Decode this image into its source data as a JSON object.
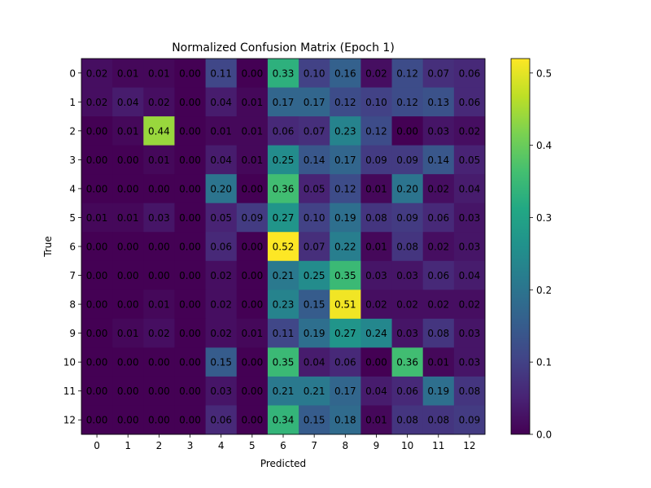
{
  "chart_data": {
    "type": "heatmap",
    "title": "Normalized Confusion Matrix (Epoch 1)",
    "xlabel": "Predicted",
    "ylabel": "True",
    "x_categories": [
      "0",
      "1",
      "2",
      "3",
      "4",
      "5",
      "6",
      "7",
      "8",
      "9",
      "10",
      "11",
      "12"
    ],
    "y_categories": [
      "0",
      "1",
      "2",
      "3",
      "4",
      "5",
      "6",
      "7",
      "8",
      "9",
      "10",
      "11",
      "12"
    ],
    "values": [
      [
        0.02,
        0.01,
        0.01,
        0.0,
        0.11,
        0.0,
        0.33,
        0.1,
        0.16,
        0.02,
        0.12,
        0.07,
        0.06
      ],
      [
        0.02,
        0.04,
        0.02,
        0.0,
        0.04,
        0.01,
        0.17,
        0.17,
        0.12,
        0.1,
        0.12,
        0.13,
        0.06
      ],
      [
        0.0,
        0.01,
        0.44,
        0.0,
        0.01,
        0.01,
        0.06,
        0.07,
        0.23,
        0.12,
        0.0,
        0.03,
        0.02
      ],
      [
        0.0,
        0.0,
        0.01,
        0.0,
        0.04,
        0.01,
        0.25,
        0.14,
        0.17,
        0.09,
        0.09,
        0.14,
        0.05
      ],
      [
        0.0,
        0.0,
        0.0,
        0.0,
        0.2,
        0.0,
        0.36,
        0.05,
        0.12,
        0.01,
        0.2,
        0.02,
        0.04
      ],
      [
        0.01,
        0.01,
        0.03,
        0.0,
        0.05,
        0.09,
        0.27,
        0.1,
        0.19,
        0.08,
        0.09,
        0.06,
        0.03
      ],
      [
        0.0,
        0.0,
        0.0,
        0.0,
        0.06,
        0.0,
        0.52,
        0.07,
        0.22,
        0.01,
        0.08,
        0.02,
        0.03
      ],
      [
        0.0,
        0.0,
        0.0,
        0.0,
        0.02,
        0.0,
        0.21,
        0.25,
        0.35,
        0.03,
        0.03,
        0.06,
        0.04
      ],
      [
        0.0,
        0.0,
        0.01,
        0.0,
        0.02,
        0.0,
        0.23,
        0.15,
        0.51,
        0.02,
        0.02,
        0.02,
        0.02
      ],
      [
        0.0,
        0.01,
        0.02,
        0.0,
        0.02,
        0.01,
        0.11,
        0.19,
        0.27,
        0.24,
        0.03,
        0.08,
        0.03
      ],
      [
        0.0,
        0.0,
        0.0,
        0.0,
        0.15,
        0.0,
        0.35,
        0.04,
        0.06,
        0.0,
        0.36,
        0.01,
        0.03
      ],
      [
        0.0,
        0.0,
        0.0,
        0.0,
        0.03,
        0.0,
        0.21,
        0.21,
        0.17,
        0.04,
        0.06,
        0.19,
        0.08
      ],
      [
        0.0,
        0.0,
        0.0,
        0.0,
        0.06,
        0.0,
        0.34,
        0.15,
        0.18,
        0.01,
        0.08,
        0.08,
        0.09
      ]
    ],
    "colormap": "viridis",
    "colorbar": {
      "range": [
        0.0,
        0.52
      ],
      "ticks": [
        0.0,
        0.1,
        0.2,
        0.3,
        0.4,
        0.5
      ],
      "tick_labels": [
        "0.0",
        "0.1",
        "0.2",
        "0.3",
        "0.4",
        "0.5"
      ]
    },
    "grid": false,
    "legend": "none"
  }
}
